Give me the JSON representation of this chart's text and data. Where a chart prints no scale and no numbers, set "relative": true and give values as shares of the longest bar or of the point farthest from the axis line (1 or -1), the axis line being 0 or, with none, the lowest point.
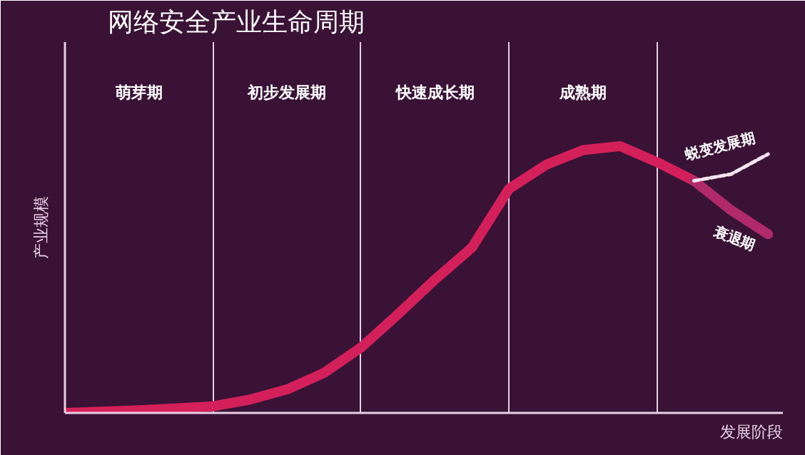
{
  "chart_data": {
    "type": "line",
    "title": "网络安全产业生命周期",
    "ylabel": "产业规模",
    "xlabel": "发展阶段",
    "relative": true,
    "line_style": "solid",
    "categories": [
      null,
      null,
      null,
      null,
      null,
      null,
      null,
      null,
      null,
      null,
      null,
      null,
      null,
      null,
      null,
      null,
      null,
      null,
      null,
      null
    ],
    "series": [
      {
        "color": "#d4205a",
        "values": [
          0,
          0.005,
          0.01,
          0.017,
          0.025,
          0.05,
          0.088,
          0.15,
          0.245,
          0.37,
          0.5,
          0.62,
          0.84,
          0.93,
          0.985,
          1.0,
          0.94,
          0.87,
          null,
          null
        ]
      },
      {
        "name": "蜕变发展期",
        "color": "#f4e4f0",
        "line_style": "dashed",
        "values": [
          null,
          null,
          null,
          null,
          null,
          null,
          null,
          null,
          null,
          null,
          null,
          null,
          null,
          null,
          null,
          null,
          null,
          0.87,
          0.895,
          0.97
        ]
      },
      {
        "name": "衰退期",
        "color": "#b02a6a",
        "values": [
          null,
          null,
          null,
          null,
          null,
          null,
          null,
          null,
          null,
          null,
          null,
          null,
          null,
          null,
          null,
          null,
          null,
          0.87,
          0.76,
          0.67
        ]
      }
    ],
    "grid": "x",
    "annotations": [
      "萌芽期",
      "初步发展期",
      "快速成长期",
      "成熟期"
    ]
  }
}
